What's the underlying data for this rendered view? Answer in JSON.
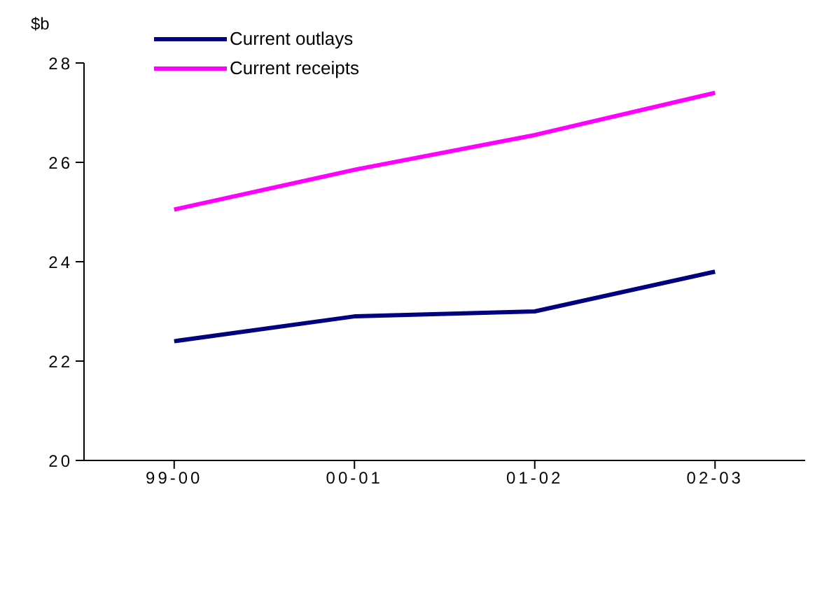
{
  "chart_data": {
    "type": "line",
    "ylabel": "$b",
    "categories": [
      "99-00",
      "00-01",
      "01-02",
      "02-03"
    ],
    "series": [
      {
        "name": "Current outlays",
        "color": "#000080",
        "values": [
          22.4,
          22.9,
          23.0,
          23.8
        ]
      },
      {
        "name": "Current receipts",
        "color": "#ff00ff",
        "values": [
          25.05,
          25.85,
          26.55,
          27.4
        ]
      }
    ],
    "ylim": [
      20,
      28
    ],
    "yticks": [
      20,
      22,
      24,
      26,
      28
    ],
    "grid": false,
    "legend": "top left",
    "marker": "none",
    "line_style": "solid"
  }
}
